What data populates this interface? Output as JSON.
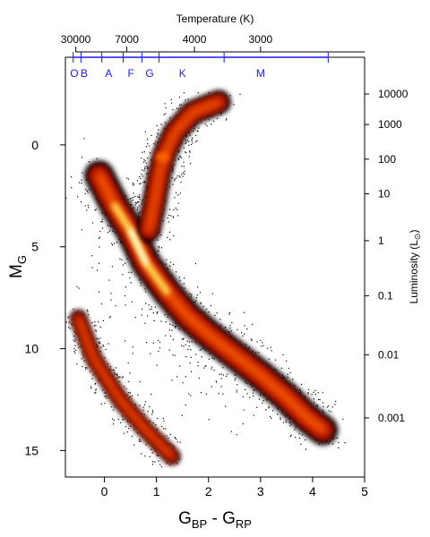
{
  "chart_data": {
    "type": "scatter",
    "title": "",
    "xlabel": {
      "main": "G",
      "sub1": "BP",
      "mid": " - G",
      "sub2": "RP"
    },
    "ylabel": {
      "main": "M",
      "sub": "G"
    },
    "xlim": [
      -0.75,
      5.0
    ],
    "ylim": [
      16.3,
      -4.3
    ],
    "y_inverted": true,
    "x_ticks": [
      {
        "v": 0,
        "label": "0"
      },
      {
        "v": 1,
        "label": "1"
      },
      {
        "v": 2,
        "label": "2"
      },
      {
        "v": 3,
        "label": "3"
      },
      {
        "v": 4,
        "label": "4"
      },
      {
        "v": 5,
        "label": "5"
      }
    ],
    "y_ticks": [
      {
        "v": 0,
        "label": "0"
      },
      {
        "v": 5,
        "label": "5"
      },
      {
        "v": 10,
        "label": "10"
      },
      {
        "v": 15,
        "label": "15"
      }
    ],
    "top_axis": {
      "label": "Temperature (K)",
      "ticks": [
        {
          "x": -0.55,
          "label": "30000"
        },
        {
          "x": 0.43,
          "label": "7000"
        },
        {
          "x": 1.73,
          "label": "4000"
        },
        {
          "x": 3.0,
          "label": "3000"
        }
      ]
    },
    "right_axis": {
      "label_main": "Luminosity (L",
      "label_sub": "⊙",
      "label_end": ")",
      "ticks": [
        {
          "mg": -2.5,
          "label": "10000"
        },
        {
          "mg": -1.0,
          "label": "1000"
        },
        {
          "mg": 0.7,
          "label": "100"
        },
        {
          "mg": 2.4,
          "label": "10"
        },
        {
          "mg": 4.7,
          "label": "1"
        },
        {
          "mg": 7.4,
          "label": "0.1"
        },
        {
          "mg": 10.3,
          "label": "0.01"
        },
        {
          "mg": 13.4,
          "label": "0.001"
        }
      ]
    },
    "spectral_classes": [
      {
        "label": "O",
        "x": -0.58
      },
      {
        "label": "B",
        "x": -0.39
      },
      {
        "label": "A",
        "x": 0.08
      },
      {
        "label": "F",
        "x": 0.51
      },
      {
        "label": "G",
        "x": 0.87
      },
      {
        "label": "K",
        "x": 1.5
      },
      {
        "label": "M",
        "x": 3.0
      }
    ],
    "spectral_boundaries": [
      -0.6,
      -0.45,
      -0.05,
      0.36,
      0.72,
      1.05,
      2.3,
      4.3
    ],
    "density": {
      "main_sequence": [
        [
          -0.1,
          1.5
        ],
        [
          0.2,
          3.0
        ],
        [
          0.5,
          4.2
        ],
        [
          0.8,
          5.8
        ],
        [
          1.2,
          7.2
        ],
        [
          1.6,
          8.4
        ],
        [
          2.0,
          9.3
        ],
        [
          2.5,
          10.3
        ],
        [
          3.0,
          11.3
        ],
        [
          3.5,
          12.4
        ],
        [
          3.9,
          13.4
        ],
        [
          4.2,
          14.0
        ]
      ],
      "giant_branch": [
        [
          0.85,
          4.2
        ],
        [
          0.95,
          3.0
        ],
        [
          1.05,
          1.5
        ],
        [
          1.15,
          0.5
        ],
        [
          1.35,
          -0.6
        ],
        [
          1.7,
          -1.6
        ],
        [
          2.2,
          -2.1
        ]
      ],
      "red_clump": [
        1.12,
        0.6
      ],
      "white_dwarfs": [
        [
          -0.5,
          8.5
        ],
        [
          -0.2,
          10.5
        ],
        [
          0.3,
          12.5
        ],
        [
          0.8,
          14.0
        ],
        [
          1.3,
          15.3
        ]
      ],
      "colormap": [
        "#000000",
        "#8b0000",
        "#cc1a00",
        "#ff6600",
        "#ffd24d",
        "#ffffe0"
      ]
    }
  }
}
